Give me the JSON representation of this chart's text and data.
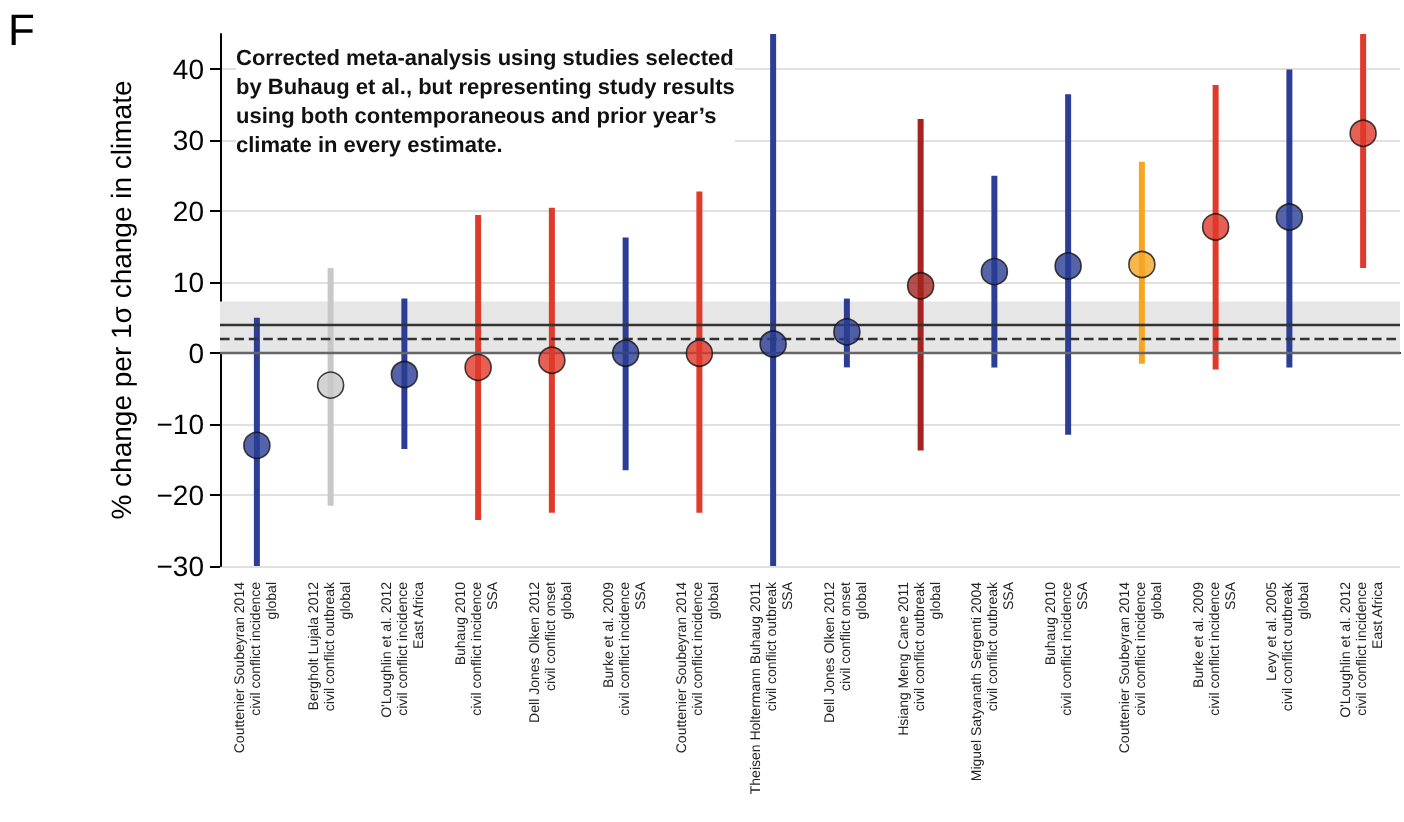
{
  "chart_data": {
    "type": "scatter",
    "ylabel": "% change per 1σ change in climate",
    "annotations": [
      "F",
      "Corrected meta-analysis using studies selected\nby Buhaug et al., but representing study results\nusing both contemporaneous and prior year’s\nclimate in every estimate."
    ],
    "categories": [
      "Couttenier Soubeyran 2014\ncivil conflict incidence\nglobal",
      "Bergholt Lujala 2012\ncivil conflict outbreak\nglobal",
      "O'Loughlin et al. 2012\ncivil conflict incidence\nEast Africa",
      "Buhaug 2010\ncivil conflict incidence\nSSA",
      "Dell Jones Olken 2012\ncivil conflict onset\nglobal",
      "Burke et al. 2009\ncivil conflict incidence\nSSA",
      "Couttenier Soubeyran 2014\ncivil conflict incidence\nglobal",
      "Theisen Holtermann Buhaug 2011\ncivil conflict outbreak\nSSA",
      "Dell Jones Olken 2012\ncivil conflict onset\nglobal",
      "Hsiang Meng Cane 2011\ncivil conflict outbreak\nglobal",
      "Miguel Satyanath Sergenti 2004\ncivil conflict outbreak\nSSA",
      "Buhaug 2010\ncivil conflict incidence\nSSA",
      "Couttenier Soubeyran 2014\ncivil conflict incidence\nglobal",
      "Burke et al. 2009\ncivil conflict incidence\nSSA",
      "Levy et al. 2005\ncivil conflict outbreak\nglobal",
      "O'Loughlin et al. 2012\ncivil conflict incidence\nEast Africa"
    ],
    "values": [
      -13,
      -4.5,
      -3,
      -2,
      -1,
      0,
      0,
      1.3,
      3,
      9.5,
      11.5,
      12.3,
      12.5,
      17.8,
      19.2,
      31
    ],
    "colors": [
      "#2b3d94",
      "#c8c8c8",
      "#2b3d94",
      "#e03a2b",
      "#e03a2b",
      "#2b3d94",
      "#e03a2b",
      "#2b3d94",
      "#2b3d94",
      "#a3231f",
      "#2b3d94",
      "#2b3d94",
      "#f5a623",
      "#e03a2b",
      "#2b3d94",
      "#e03a2b"
    ],
    "errors": [
      [
        -30,
        5
      ],
      [
        -21.5,
        12
      ],
      [
        -13.5,
        7.7
      ],
      [
        -23.5,
        19.5
      ],
      [
        -22.5,
        20.5
      ],
      [
        -16.5,
        16.3
      ],
      [
        -22.5,
        22.8
      ],
      [
        -30,
        45
      ],
      [
        -2,
        7.7
      ],
      [
        -13.7,
        33
      ],
      [
        -2,
        25
      ],
      [
        -11.5,
        36.5
      ],
      [
        -1.5,
        27
      ],
      [
        -2.3,
        37.8
      ],
      [
        -2,
        40
      ],
      [
        12,
        45
      ]
    ],
    "ylim": [
      -30,
      45
    ],
    "yticks": [
      -30,
      -20,
      -10,
      0,
      10,
      20,
      30,
      40
    ],
    "grid": "y",
    "marker": "circle",
    "ref_lines": [
      {
        "axis": "y",
        "value": 0,
        "color": "#666666"
      },
      {
        "axis": "y",
        "value": 4,
        "color": "#333333"
      },
      {
        "axis": "y",
        "value": 2,
        "color": "#333333",
        "line_style": "dashed"
      }
    ],
    "bands": [
      {
        "axis": "y",
        "from": 0,
        "to": 7.3,
        "color": "#e6e6e6"
      }
    ]
  }
}
